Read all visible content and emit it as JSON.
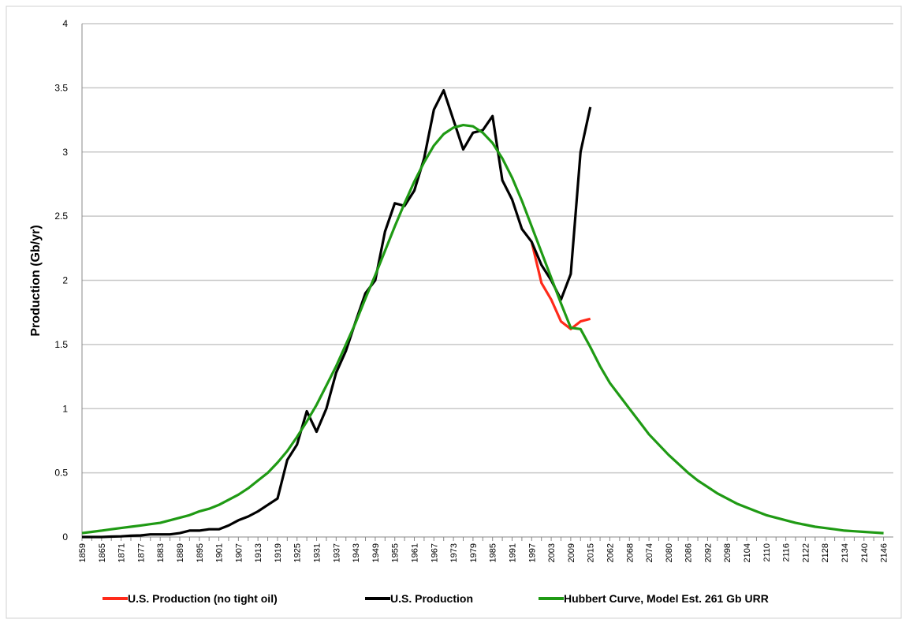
{
  "chart_data": {
    "type": "line",
    "y_label": "Production (Gb/yr)",
    "categories": [
      1859,
      null,
      1865,
      null,
      1871,
      null,
      1877,
      null,
      1883,
      null,
      1889,
      null,
      1895,
      null,
      1901,
      null,
      1907,
      null,
      1913,
      null,
      1919,
      null,
      1925,
      null,
      1931,
      null,
      1937,
      null,
      1943,
      null,
      1949,
      null,
      1955,
      null,
      1961,
      null,
      1967,
      null,
      1973,
      null,
      1979,
      null,
      1985,
      null,
      1991,
      null,
      1997,
      null,
      2003,
      null,
      2009,
      null,
      2015,
      null,
      2062,
      null,
      2068,
      null,
      2074,
      null,
      2080,
      null,
      2086,
      null,
      2092,
      null,
      2098,
      null,
      2104,
      null,
      2110,
      null,
      2116,
      null,
      2122,
      null,
      2128,
      null,
      2134,
      null,
      2140,
      null,
      2146
    ],
    "series": [
      {
        "name": "U.S. Production (no tight oil)",
        "color": "#ff2a1a",
        "values": [
          null,
          null,
          null,
          null,
          null,
          null,
          null,
          null,
          null,
          null,
          null,
          null,
          null,
          null,
          null,
          null,
          null,
          null,
          null,
          null,
          null,
          null,
          null,
          null,
          null,
          null,
          null,
          null,
          null,
          null,
          null,
          null,
          null,
          null,
          null,
          null,
          null,
          null,
          null,
          null,
          null,
          null,
          null,
          null,
          null,
          null,
          2.3,
          1.98,
          1.85,
          1.68,
          1.62,
          1.68,
          1.7,
          null,
          null,
          null,
          null,
          null,
          null,
          null,
          null,
          null,
          null,
          null,
          null,
          null,
          null,
          null,
          null,
          null,
          null,
          null,
          null,
          null,
          null,
          null,
          null,
          null,
          null,
          null,
          null,
          null,
          null
        ]
      },
      {
        "name": "U.S. Production",
        "color": "#000000",
        "values": [
          0,
          0,
          0,
          0.003,
          0.005,
          0.01,
          0.012,
          0.02,
          0.02,
          0.02,
          0.03,
          0.05,
          0.05,
          0.06,
          0.06,
          0.09,
          0.13,
          0.16,
          0.2,
          0.25,
          0.3,
          0.6,
          0.72,
          0.98,
          0.82,
          1.0,
          1.28,
          1.45,
          1.68,
          1.9,
          2.0,
          2.38,
          2.6,
          2.58,
          2.7,
          2.95,
          3.33,
          3.48,
          3.25,
          3.02,
          3.15,
          3.17,
          3.28,
          2.78,
          2.63,
          2.4,
          2.3,
          2.12,
          2.0,
          1.85,
          2.05,
          3.0,
          3.35,
          null,
          null,
          null,
          null,
          null,
          null,
          null,
          null,
          null,
          null,
          null,
          null,
          null,
          null,
          null,
          null,
          null,
          null,
          null,
          null,
          null,
          null,
          null,
          null,
          null,
          null,
          null,
          null,
          null,
          null
        ]
      },
      {
        "name": "Hubbert Curve, Model Est. 261 Gb URR",
        "color": "#1f9a14",
        "values": [
          0.03,
          0.04,
          0.05,
          0.06,
          0.07,
          0.08,
          0.09,
          0.1,
          0.11,
          0.13,
          0.15,
          0.17,
          0.2,
          0.22,
          0.25,
          0.29,
          0.33,
          0.38,
          0.44,
          0.5,
          0.58,
          0.67,
          0.78,
          0.9,
          1.03,
          1.18,
          1.33,
          1.5,
          1.67,
          1.86,
          2.04,
          2.23,
          2.42,
          2.6,
          2.77,
          2.92,
          3.05,
          3.14,
          3.19,
          3.21,
          3.2,
          3.15,
          3.07,
          2.95,
          2.8,
          2.62,
          2.42,
          2.22,
          2.02,
          1.82,
          1.63,
          1.62,
          1.48,
          1.33,
          1.2,
          1.1,
          1.0,
          0.9,
          0.8,
          0.72,
          0.64,
          0.57,
          0.5,
          0.44,
          0.39,
          0.34,
          0.3,
          0.26,
          0.23,
          0.2,
          0.17,
          0.15,
          0.13,
          0.11,
          0.095,
          0.08,
          0.07,
          0.06,
          0.05,
          0.045,
          0.04,
          0.035,
          0.03
        ]
      }
    ],
    "ylim": [
      0,
      4
    ],
    "yticks": [
      0,
      0.5,
      1,
      1.5,
      2,
      2.5,
      3,
      3.5,
      4
    ],
    "grid": true,
    "legend": "bottom"
  }
}
